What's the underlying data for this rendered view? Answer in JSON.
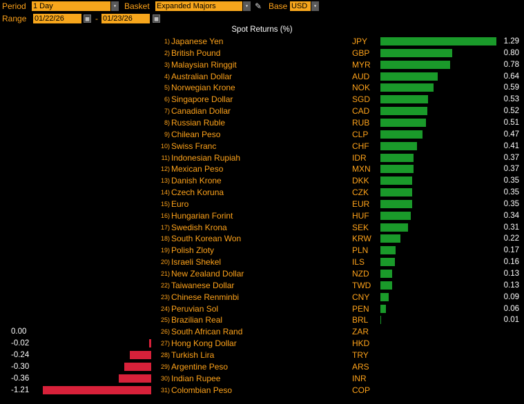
{
  "toolbar": {
    "period_label": "Period",
    "period_value": "1 Day",
    "basket_label": "Basket",
    "basket_value": "Expanded Majors",
    "base_label": "Base",
    "base_value": "USD",
    "range_label": "Range",
    "range_start": "01/22/26",
    "range_separator": "-",
    "range_end": "01/23/26",
    "dropdown_glyph": "▾",
    "calendar_glyph": "▦",
    "edit_glyph": "✎"
  },
  "colors": {
    "positive": "#1a9a2a",
    "negative": "#d8213a",
    "accent": "#ffa31a",
    "field": "#f7a61c"
  },
  "chart_data": {
    "type": "bar",
    "title": "Spot Returns (%)",
    "unit": "%",
    "orientation": "horizontal",
    "rows": [
      {
        "rank": "1)",
        "name": "Japanese Yen",
        "code": "JPY",
        "value": 1.29
      },
      {
        "rank": "2)",
        "name": "British Pound",
        "code": "GBP",
        "value": 0.8
      },
      {
        "rank": "3)",
        "name": "Malaysian Ringgit",
        "code": "MYR",
        "value": 0.78
      },
      {
        "rank": "4)",
        "name": "Australian Dollar",
        "code": "AUD",
        "value": 0.64
      },
      {
        "rank": "5)",
        "name": "Norwegian Krone",
        "code": "NOK",
        "value": 0.59
      },
      {
        "rank": "6)",
        "name": "Singapore Dollar",
        "code": "SGD",
        "value": 0.53
      },
      {
        "rank": "7)",
        "name": "Canadian Dollar",
        "code": "CAD",
        "value": 0.52
      },
      {
        "rank": "8)",
        "name": "Russian Ruble",
        "code": "RUB",
        "value": 0.51
      },
      {
        "rank": "9)",
        "name": "Chilean Peso",
        "code": "CLP",
        "value": 0.47
      },
      {
        "rank": "10)",
        "name": "Swiss Franc",
        "code": "CHF",
        "value": 0.41
      },
      {
        "rank": "11)",
        "name": "Indonesian Rupiah",
        "code": "IDR",
        "value": 0.37
      },
      {
        "rank": "12)",
        "name": "Mexican Peso",
        "code": "MXN",
        "value": 0.37
      },
      {
        "rank": "13)",
        "name": "Danish Krone",
        "code": "DKK",
        "value": 0.35
      },
      {
        "rank": "14)",
        "name": "Czech Koruna",
        "code": "CZK",
        "value": 0.35
      },
      {
        "rank": "15)",
        "name": "Euro",
        "code": "EUR",
        "value": 0.35
      },
      {
        "rank": "16)",
        "name": "Hungarian Forint",
        "code": "HUF",
        "value": 0.34
      },
      {
        "rank": "17)",
        "name": "Swedish Krona",
        "code": "SEK",
        "value": 0.31
      },
      {
        "rank": "18)",
        "name": "South Korean Won",
        "code": "KRW",
        "value": 0.22
      },
      {
        "rank": "19)",
        "name": "Polish Zloty",
        "code": "PLN",
        "value": 0.17
      },
      {
        "rank": "20)",
        "name": "Israeli Shekel",
        "code": "ILS",
        "value": 0.16
      },
      {
        "rank": "21)",
        "name": "New Zealand Dollar",
        "code": "NZD",
        "value": 0.13
      },
      {
        "rank": "22)",
        "name": "Taiwanese Dollar",
        "code": "TWD",
        "value": 0.13
      },
      {
        "rank": "23)",
        "name": "Chinese Renminbi",
        "code": "CNY",
        "value": 0.09
      },
      {
        "rank": "24)",
        "name": "Peruvian Sol",
        "code": "PEN",
        "value": 0.06
      },
      {
        "rank": "25)",
        "name": "Brazilian Real",
        "code": "BRL",
        "value": 0.01
      },
      {
        "rank": "26)",
        "name": "South African Rand",
        "code": "ZAR",
        "value": 0.0
      },
      {
        "rank": "27)",
        "name": "Hong Kong Dollar",
        "code": "HKD",
        "value": -0.02
      },
      {
        "rank": "28)",
        "name": "Turkish Lira",
        "code": "TRY",
        "value": -0.24
      },
      {
        "rank": "29)",
        "name": "Argentine Peso",
        "code": "ARS",
        "value": -0.3
      },
      {
        "rank": "30)",
        "name": "Indian Rupee",
        "code": "INR",
        "value": -0.36
      },
      {
        "rank": "31)",
        "name": "Colombian Peso",
        "code": "COP",
        "value": -1.21
      }
    ]
  }
}
